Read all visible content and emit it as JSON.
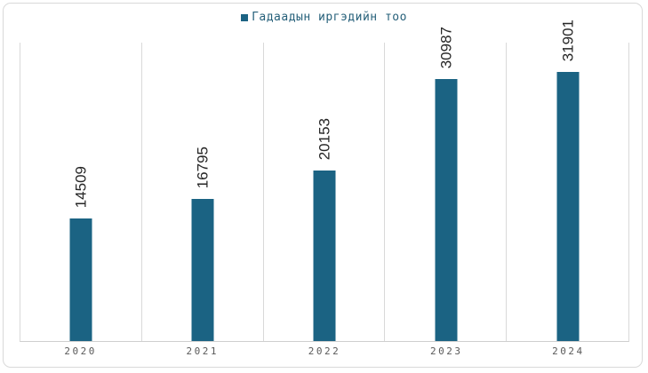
{
  "chart_data": {
    "type": "bar",
    "title": "",
    "categories": [
      "2020",
      "2021",
      "2022",
      "2023",
      "2024"
    ],
    "series": [
      {
        "name": "Гадаадын иргэдийн тоо",
        "values": [
          14509,
          16795,
          20153,
          30987,
          31901
        ]
      }
    ],
    "data_labels": [
      "14509",
      "16795",
      "20153",
      "30987",
      "31901"
    ],
    "xlabel": "",
    "ylabel": "",
    "ylim": [
      0,
      35350
    ],
    "grid": "vertical-category-boundaries",
    "legend_position": "top-center",
    "data_label_rotation_deg": 90
  },
  "legend": {
    "label": "Гадаадын иргэдийн тоо"
  },
  "colors": {
    "bar_fill": "#1b6383",
    "legend_text": "#26607a",
    "legend_marker": "#1b6383",
    "data_label_text": "#262626",
    "axis_label_text": "#595959",
    "gridline": "#d9d9d9",
    "frame_border": "#d9d9d9"
  }
}
